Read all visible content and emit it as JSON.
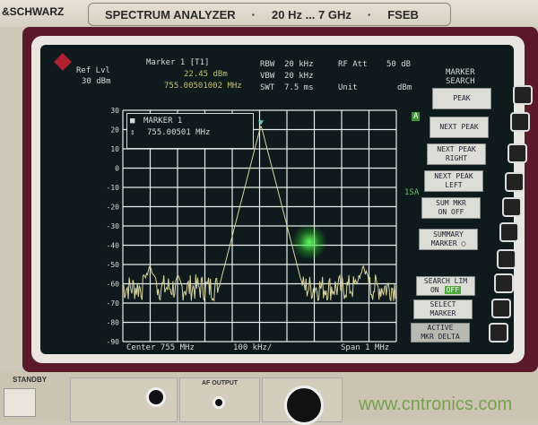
{
  "header": {
    "brand": "&SCHWARZ",
    "model_plate": [
      "SPECTRUM ANALYZER",
      "·",
      "20 Hz ... 7 GHz",
      "·",
      "FSEB"
    ]
  },
  "display": {
    "ref_lvl_label": "Ref Lvl",
    "ref_lvl_value": "30 dBm",
    "marker_title": "Marker 1 [T1]",
    "marker_level": "22.45 dBm",
    "marker_freq": "755.00501002 MHz",
    "rbw_label": "RBW",
    "rbw_value": "20 kHz",
    "vbw_label": "VBW",
    "vbw_value": "20 kHz",
    "swt_label": "SWT",
    "swt_value": "7.5 ms",
    "rfatt_label": "RF Att",
    "rfatt_value": "50 dB",
    "unit_label": "Unit",
    "unit_value": "dBm",
    "marker_box": {
      "title": "MARKER 1",
      "freq": "755.00501 MHz"
    },
    "side_labels": {
      "a": "A",
      "b": "1SA"
    },
    "center": "Center 755 MHz",
    "div": "100 kHz/",
    "span": "Span 1 MHz",
    "y_ticks": [
      "30",
      "20",
      "10",
      "0",
      "-10",
      "-20",
      "-30",
      "-40",
      "-50",
      "-60",
      "-70",
      "-80",
      "-90"
    ]
  },
  "softkeys": {
    "title_1": "MARKER",
    "title_2": "SEARCH",
    "keys": [
      {
        "l1": "PEAK",
        "l2": ""
      },
      {
        "l1": "NEXT PEAK",
        "l2": ""
      },
      {
        "l1": "NEXT PEAK",
        "l2": "RIGHT"
      },
      {
        "l1": "NEXT PEAK",
        "l2": "LEFT"
      },
      {
        "l1": "SUM MKR",
        "l2": "ON   OFF"
      },
      {
        "l1": "SUMMARY",
        "l2": "MARKER ○"
      },
      {
        "l1": "SEARCH LIM",
        "l2": "ON",
        "l2_active": "OFF"
      },
      {
        "l1": "SELECT",
        "l2": "MARKER"
      },
      {
        "l1": "ACTIVE",
        "l2": "MKR DELTA"
      }
    ]
  },
  "front_panel": {
    "standby": "STANDBY",
    "af_output": "AF OUTPUT"
  },
  "watermark": "www.cntronics.com",
  "chart_data": {
    "type": "line",
    "xlabel": "",
    "ylabel": "dBm",
    "x_center_mhz": 755,
    "x_span_mhz": 1,
    "ylim": [
      -90,
      30
    ],
    "peak": {
      "x_mhz": 755.00501,
      "y_dbm": 22.45
    },
    "noise_floor_dbm": -62,
    "spurs": [
      {
        "x_mhz": 754.6,
        "y_dbm": -50
      },
      {
        "x_mhz": 755.38,
        "y_dbm": -51
      }
    ],
    "grid": true,
    "trace_color": "#d8d4a0"
  }
}
